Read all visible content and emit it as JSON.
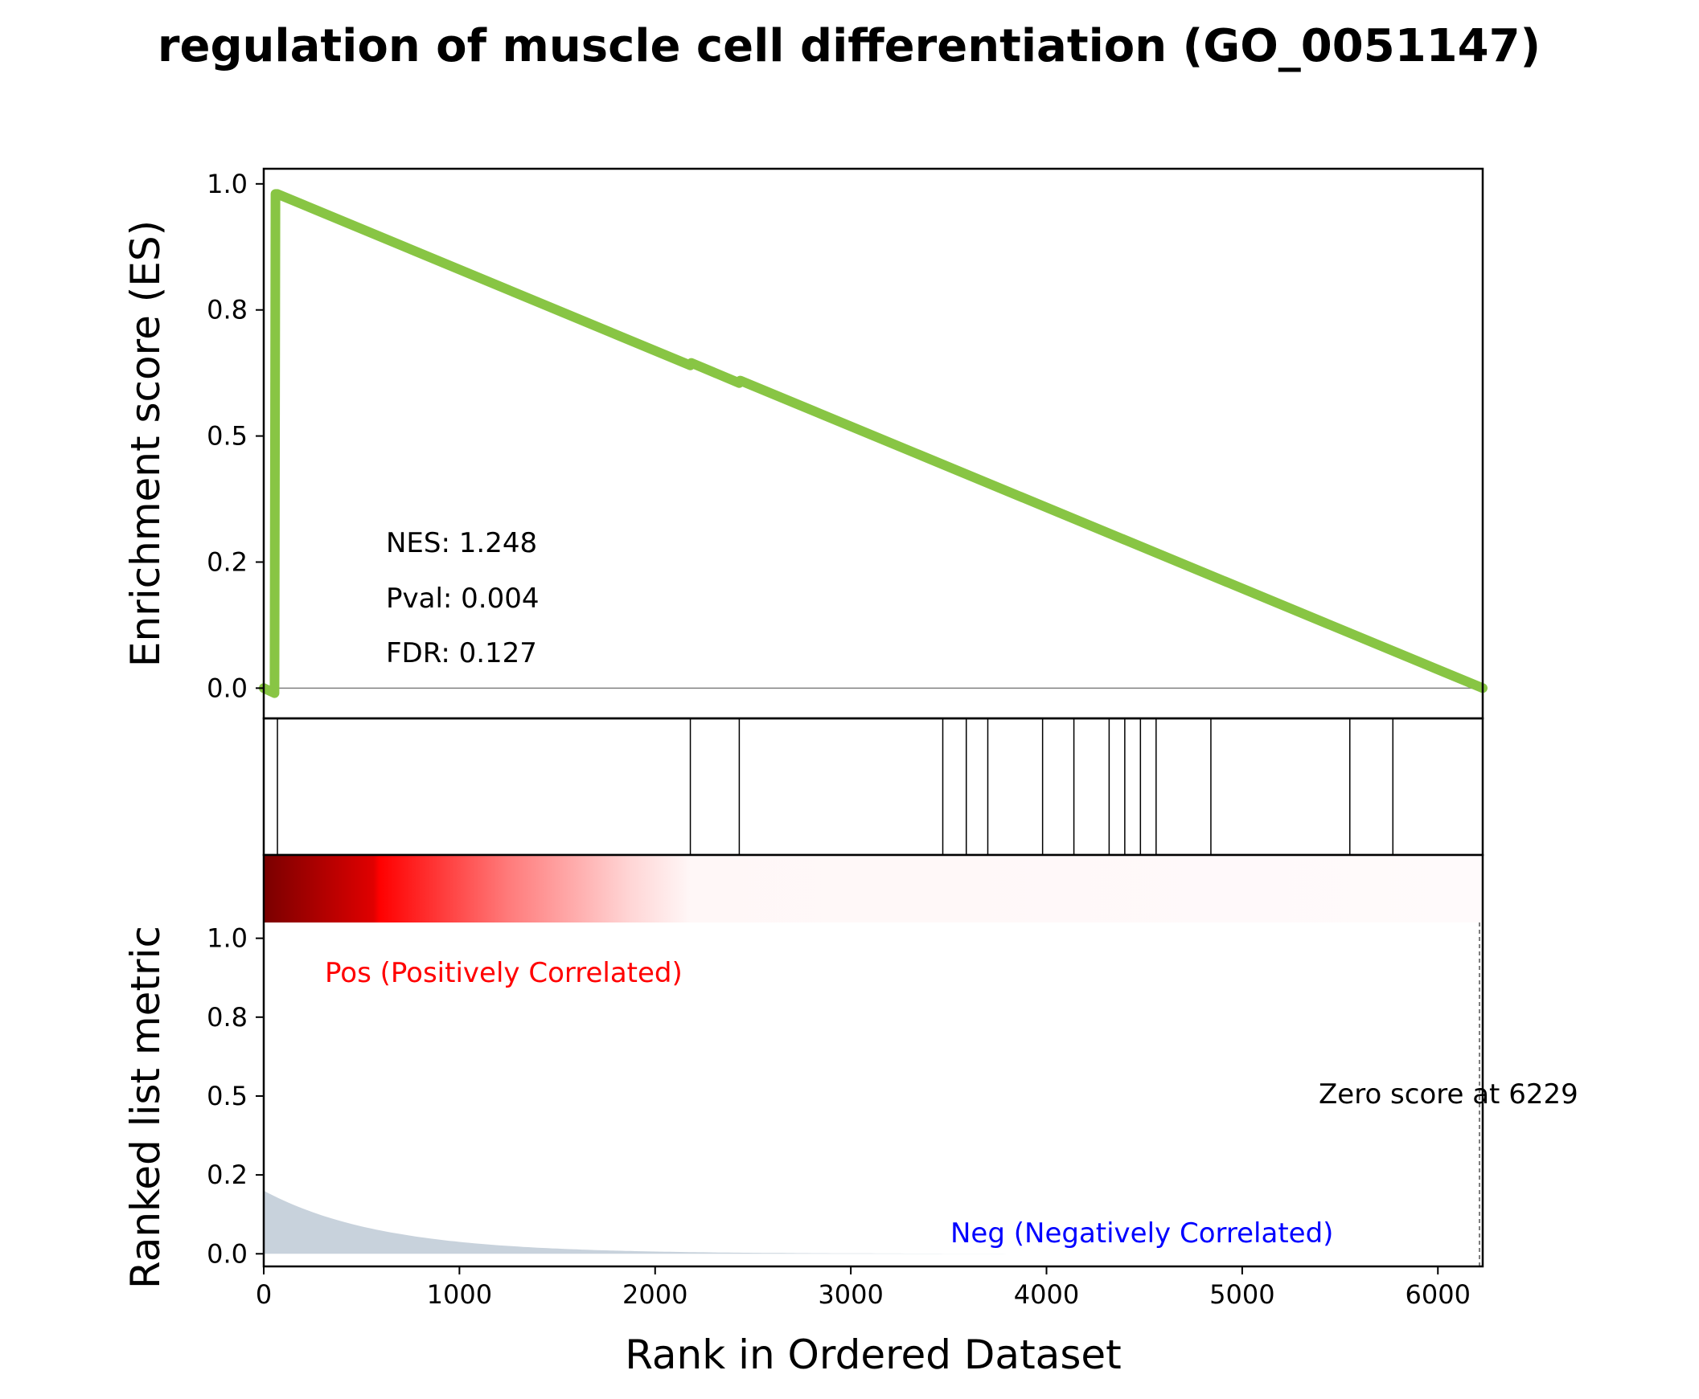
{
  "chart_data": {
    "type": "line",
    "title": "regulation of muscle cell differentiation (GO_0051147)",
    "xlabel": "Rank in Ordered Dataset",
    "xlim": [
      0,
      6229
    ],
    "xticks": [
      "0",
      "1000",
      "2000",
      "3000",
      "4000",
      "5000",
      "6000"
    ],
    "xtick_values": [
      0,
      1000,
      2000,
      3000,
      4000,
      5000,
      6000
    ],
    "es_panel": {
      "ylabel": "Enrichment score (ES)",
      "ylim": [
        -0.06,
        1.03
      ],
      "yticks": [
        "0.0",
        "0.2",
        "0.5",
        "0.8",
        "1.0"
      ],
      "ytick_values": [
        0.0,
        0.25,
        0.5,
        0.75,
        1.0
      ],
      "series": [
        {
          "color": "#88c544",
          "x": [
            0,
            55,
            60,
            70,
            2180,
            2185,
            2430,
            2435,
            6229
          ],
          "y": [
            0.0,
            -0.01,
            0.98,
            0.98,
            0.64,
            0.645,
            0.605,
            0.61,
            0.0
          ]
        }
      ],
      "annotations": {
        "nes": "NES: 1.248",
        "pval": "Pval: 0.004",
        "fdr": "FDR: 0.127"
      }
    },
    "hits": [
      70,
      2180,
      2430,
      3470,
      3590,
      3700,
      3980,
      4140,
      4320,
      4400,
      4480,
      4560,
      4840,
      5550,
      5770
    ],
    "ranked_panel": {
      "ylabel": "Ranked list metric",
      "ylim": [
        -0.04,
        1.05
      ],
      "yticks": [
        "0.0",
        "0.2",
        "0.5",
        "0.8",
        "1.0"
      ],
      "ytick_values": [
        0.0,
        0.25,
        0.5,
        0.75,
        1.0
      ],
      "fill_color": "#c8d2dc",
      "metric_start": 0.2,
      "metric_decay": 600,
      "pos_label": "Pos (Positively Correlated)",
      "neg_label": "Neg (Negatively Correlated)",
      "zero_score_label": "Zero score at 6229",
      "zero_score_rank": 6229,
      "heatmap_colors": [
        "#7a0000",
        "#ff0000",
        "#ffffff"
      ]
    }
  }
}
